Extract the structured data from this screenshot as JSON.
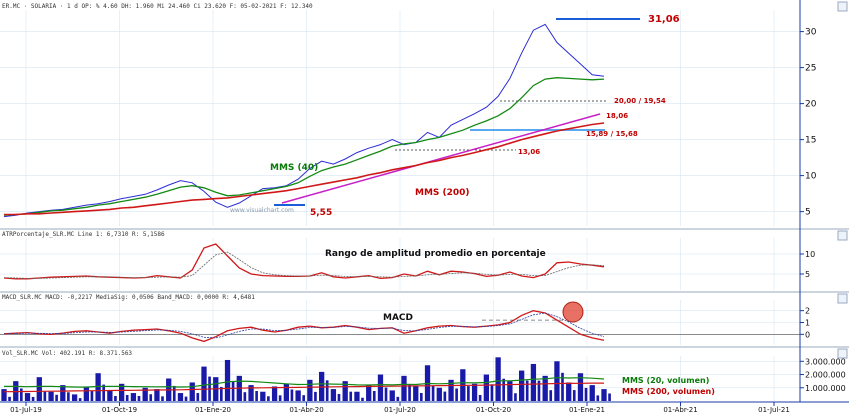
{
  "colors": {
    "price": "#2b2bd6",
    "mms40": "#148a14",
    "mms200": "#d01818",
    "support": "#c81ec8",
    "hline": "#1a5fd6",
    "hline_light": "#5aa8f0",
    "axis_blue": "#1a3aa8",
    "grid": "#d6e6f4",
    "label_red": "#c00000",
    "label_green": "#0a7a0a",
    "macd_signal": "#3040a0",
    "volume": "#1a1aa8",
    "highlight": "#e04030"
  },
  "headers": {
    "main": "ER.MC · SOLARIA · 1 d  OP: % 4.60  DH: 1.960  Mi 24.460  Ci 23.620  F: 05-02-2021  F: 12.340",
    "atr": "ATRPorcentaje_SLR.MC  Line 1: 6,7310  R: 5,1586",
    "macd": "MACD_SLR.MC  MACD: -0,2217  MediaSig: 0,0506  Band_MACD: 0,0000  R: 4,6481",
    "vol": "Vol_SLR.MC  Vol: 402.191  R: 8.371.563"
  },
  "watermark": "www.visualchart.com",
  "annotations": {
    "high": "31,06",
    "low": "5,55",
    "mms40": "MMS (40)",
    "mms200": "MMS (200)",
    "support1": "20,00 / 19,54",
    "support2": "18,06",
    "support3": "15,89 / 15,68",
    "support4": "13,06",
    "atr_title": "Rango de amplitud promedio en porcentaje",
    "macd_title": "MACD",
    "vol20": "MMS (20, volumen)",
    "vol200": "MMS (200, volumen)"
  },
  "x_axis": {
    "labels": [
      "01-Jul-19",
      "01-Oct-19",
      "01-Ene-20",
      "01-Abr-20",
      "01-Jul-20",
      "01-Oct-20",
      "01-Ene-21",
      "01-Abr-21",
      "01-Jul-21"
    ]
  },
  "chart_data": [
    {
      "type": "line",
      "name": "main-price",
      "y_ticks": [
        5,
        10,
        15,
        20,
        25,
        30
      ],
      "ylim": [
        3,
        33
      ],
      "series": [
        {
          "name": "Precio",
          "values": [
            4.3,
            4.5,
            4.8,
            5.0,
            5.2,
            5.3,
            5.6,
            5.9,
            6.1,
            6.4,
            6.8,
            7.1,
            7.4,
            8.0,
            8.7,
            9.3,
            9.0,
            7.8,
            6.3,
            5.6,
            6.2,
            7.2,
            8.2,
            8.3,
            8.6,
            9.5,
            11.0,
            12.0,
            11.6,
            12.3,
            13.2,
            13.8,
            14.3,
            15.0,
            14.3,
            14.6,
            16.0,
            15.3,
            17.0,
            17.8,
            18.6,
            19.5,
            21.0,
            23.5,
            27.0,
            30.2,
            31.0,
            28.5,
            27.0,
            25.5,
            24.0,
            23.8
          ]
        },
        {
          "name": "MMS (40)",
          "values": [
            4.5,
            4.6,
            4.7,
            4.9,
            5.1,
            5.2,
            5.4,
            5.6,
            5.9,
            6.1,
            6.4,
            6.7,
            7.0,
            7.4,
            7.9,
            8.4,
            8.6,
            8.3,
            7.7,
            7.2,
            7.3,
            7.6,
            7.9,
            8.2,
            8.5,
            9.0,
            9.9,
            10.7,
            11.2,
            11.6,
            12.2,
            12.8,
            13.4,
            14.1,
            14.4,
            14.6,
            15.0,
            15.3,
            15.8,
            16.3,
            17.0,
            17.6,
            18.3,
            19.3,
            20.8,
            22.5,
            23.4,
            23.6,
            23.5,
            23.4,
            23.3,
            23.4
          ]
        },
        {
          "name": "MMS (200)",
          "values": [
            4.6,
            4.6,
            4.7,
            4.7,
            4.8,
            4.9,
            5.0,
            5.1,
            5.2,
            5.3,
            5.5,
            5.6,
            5.8,
            6.0,
            6.2,
            6.4,
            6.6,
            6.7,
            6.8,
            6.9,
            7.1,
            7.3,
            7.5,
            7.7,
            7.9,
            8.2,
            8.5,
            8.8,
            9.1,
            9.4,
            9.7,
            10.1,
            10.4,
            10.8,
            11.1,
            11.4,
            11.8,
            12.1,
            12.5,
            12.8,
            13.2,
            13.6,
            14.0,
            14.5,
            15.0,
            15.4,
            15.8,
            16.2,
            16.5,
            16.8,
            17.1,
            17.3
          ]
        }
      ]
    },
    {
      "type": "line",
      "name": "atr-percent",
      "y_ticks": [
        5,
        10
      ],
      "ylim": [
        1,
        14
      ],
      "series": [
        {
          "name": "ATR %",
          "values": [
            4.0,
            3.8,
            3.8,
            4.0,
            4.2,
            4.3,
            4.4,
            4.5,
            4.3,
            4.2,
            4.1,
            4.0,
            4.1,
            4.6,
            4.3,
            4.0,
            6.0,
            11.5,
            12.5,
            9.5,
            6.5,
            5.0,
            4.6,
            4.5,
            4.4,
            4.4,
            4.5,
            5.3,
            4.3,
            4.0,
            4.3,
            4.6,
            3.9,
            4.1,
            5.0,
            4.5,
            5.7,
            4.8,
            5.7,
            5.5,
            5.1,
            4.4,
            4.7,
            5.5,
            4.5,
            4.1,
            5.0,
            7.8,
            8.0,
            7.5,
            7.2,
            6.8
          ]
        },
        {
          "name": "Media",
          "values": [
            4.1,
            4.0,
            3.9,
            3.9,
            4.0,
            4.1,
            4.2,
            4.3,
            4.3,
            4.3,
            4.2,
            4.1,
            4.1,
            4.2,
            4.3,
            4.2,
            4.6,
            7.2,
            9.8,
            10.5,
            8.6,
            6.6,
            5.3,
            4.8,
            4.6,
            4.5,
            4.5,
            4.7,
            4.6,
            4.4,
            4.3,
            4.4,
            4.3,
            4.2,
            4.4,
            4.5,
            4.8,
            4.9,
            5.1,
            5.3,
            5.2,
            4.9,
            4.7,
            4.9,
            4.9,
            4.6,
            4.6,
            5.6,
            6.6,
            7.2,
            7.3,
            7.1
          ]
        }
      ]
    },
    {
      "type": "line",
      "name": "macd",
      "y_ticks": [
        0,
        1,
        2
      ],
      "ylim": [
        -0.9,
        2.9
      ],
      "series": [
        {
          "name": "MACD",
          "values": [
            0.05,
            0.1,
            0.15,
            0.05,
            0.0,
            0.1,
            0.25,
            0.3,
            0.2,
            0.1,
            0.25,
            0.35,
            0.4,
            0.45,
            0.3,
            0.1,
            -0.3,
            -0.6,
            -0.2,
            0.3,
            0.5,
            0.6,
            0.35,
            0.2,
            0.35,
            0.6,
            0.7,
            0.55,
            0.6,
            0.75,
            0.6,
            0.4,
            0.5,
            0.55,
            0.1,
            0.3,
            0.55,
            0.7,
            0.75,
            0.65,
            0.6,
            0.7,
            0.8,
            1.0,
            1.6,
            2.0,
            1.8,
            1.2,
            0.6,
            0.0,
            -0.3,
            -0.5
          ]
        },
        {
          "name": "Señal",
          "values": [
            0.05,
            0.07,
            0.1,
            0.09,
            0.06,
            0.07,
            0.14,
            0.2,
            0.2,
            0.16,
            0.19,
            0.25,
            0.31,
            0.37,
            0.35,
            0.25,
            0.05,
            -0.25,
            -0.3,
            -0.05,
            0.25,
            0.45,
            0.45,
            0.32,
            0.33,
            0.45,
            0.58,
            0.58,
            0.58,
            0.66,
            0.64,
            0.52,
            0.5,
            0.53,
            0.32,
            0.3,
            0.42,
            0.58,
            0.68,
            0.68,
            0.63,
            0.66,
            0.74,
            0.88,
            1.25,
            1.65,
            1.8,
            1.5,
            1.05,
            0.5,
            0.1,
            -0.2
          ]
        }
      ],
      "annotation_level": 1.2
    },
    {
      "type": "bar",
      "name": "volume",
      "y_ticks": [
        1000000,
        2000000,
        3000000
      ],
      "ylim": [
        0,
        3400000
      ],
      "series": [
        {
          "name": "Volumen",
          "values": [
            900000,
            1500000,
            600000,
            1800000,
            700000,
            1200000,
            500000,
            1100000,
            2100000,
            800000,
            1300000,
            600000,
            1000000,
            900000,
            1700000,
            600000,
            1400000,
            2600000,
            1800000,
            3100000,
            1900000,
            1200000,
            700000,
            1100000,
            1300000,
            800000,
            1600000,
            2200000,
            900000,
            1500000,
            700000,
            1200000,
            2000000,
            800000,
            1900000,
            1100000,
            2700000,
            1000000,
            1600000,
            2400000,
            1300000,
            2000000,
            3300000,
            1500000,
            2300000,
            2800000,
            1900000,
            3000000,
            1400000,
            2100000,
            1200000,
            900000
          ]
        },
        {
          "name": "MMS (20, volumen)",
          "values": [
            1100000,
            1100000,
            1080000,
            1100000,
            1100000,
            1080000,
            1060000,
            1050000,
            1100000,
            1100000,
            1110000,
            1090000,
            1080000,
            1070000,
            1080000,
            1060000,
            1080000,
            1200000,
            1300000,
            1450000,
            1500000,
            1480000,
            1420000,
            1360000,
            1300000,
            1250000,
            1260000,
            1300000,
            1280000,
            1260000,
            1220000,
            1210000,
            1240000,
            1220000,
            1260000,
            1250000,
            1320000,
            1300000,
            1330000,
            1380000,
            1370000,
            1400000,
            1520000,
            1530000,
            1580000,
            1650000,
            1680000,
            1760000,
            1740000,
            1760000,
            1720000,
            1660000
          ]
        },
        {
          "name": "MMS (200, volumen)",
          "values": [
            700000,
            710000,
            720000,
            730000,
            740000,
            750000,
            760000,
            770000,
            780000,
            790000,
            800000,
            810000,
            820000,
            830000,
            840000,
            850000,
            870000,
            890000,
            920000,
            950000,
            970000,
            990000,
            1000000,
            1010000,
            1020000,
            1030000,
            1040000,
            1060000,
            1070000,
            1080000,
            1090000,
            1100000,
            1110000,
            1120000,
            1130000,
            1140000,
            1150000,
            1160000,
            1170000,
            1180000,
            1190000,
            1200000,
            1220000,
            1240000,
            1260000,
            1280000,
            1300000,
            1320000,
            1330000,
            1340000,
            1350000,
            1350000
          ]
        }
      ]
    }
  ]
}
